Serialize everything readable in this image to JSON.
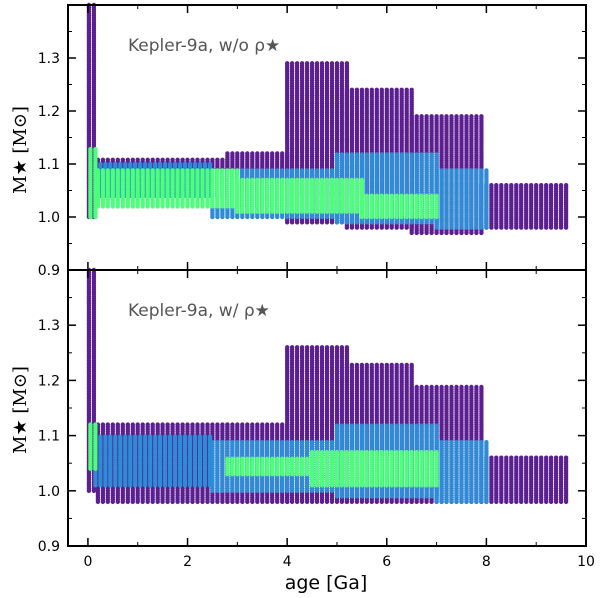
{
  "chart_data": [
    {
      "type": "scatter",
      "annotation": "Kepler-9a, w/o ρ★",
      "ylabel": "M★ [M⊙]",
      "ylim": [
        0.9,
        1.4
      ],
      "xlim": [
        -0.4,
        10
      ],
      "yticks": [
        "0.9",
        "1.0",
        "1.1",
        "1.2",
        "1.3"
      ],
      "colors": {
        "purple": "#5b1f8f",
        "blue": "#2e8bd6",
        "green": "#4dff7a"
      },
      "regions": {
        "purple": [
          {
            "age_min": 0.02,
            "age_max": 0.12,
            "m_min": 1.0,
            "m_max": 1.4
          },
          {
            "age_min": 0.2,
            "age_max": 2.8,
            "m_min": 1.04,
            "m_max": 1.11
          },
          {
            "age_min": 2.8,
            "age_max": 4.0,
            "m_min": 1.02,
            "m_max": 1.12
          },
          {
            "age_min": 4.0,
            "age_max": 5.2,
            "m_min": 0.99,
            "m_max": 1.29
          },
          {
            "age_min": 5.2,
            "age_max": 6.5,
            "m_min": 0.98,
            "m_max": 1.24
          },
          {
            "age_min": 6.5,
            "age_max": 7.9,
            "m_min": 0.97,
            "m_max": 1.19
          },
          {
            "age_min": 7.9,
            "age_max": 9.6,
            "m_min": 0.98,
            "m_max": 1.06
          }
        ],
        "blue": [
          {
            "age_min": 0.15,
            "age_max": 2.5,
            "m_min": 1.04,
            "m_max": 1.1
          },
          {
            "age_min": 2.5,
            "age_max": 5.0,
            "m_min": 1.0,
            "m_max": 1.09
          },
          {
            "age_min": 5.0,
            "age_max": 7.0,
            "m_min": 0.99,
            "m_max": 1.12
          },
          {
            "age_min": 7.0,
            "age_max": 8.0,
            "m_min": 0.98,
            "m_max": 1.09
          }
        ],
        "green": [
          {
            "age_min": 0.05,
            "age_max": 0.2,
            "m_min": 1.0,
            "m_max": 1.13
          },
          {
            "age_min": 0.2,
            "age_max": 3.0,
            "m_min": 1.02,
            "m_max": 1.09
          },
          {
            "age_min": 3.0,
            "age_max": 5.5,
            "m_min": 1.01,
            "m_max": 1.07
          },
          {
            "age_min": 5.5,
            "age_max": 7.0,
            "m_min": 1.0,
            "m_max": 1.04
          }
        ]
      }
    },
    {
      "type": "scatter",
      "annotation": "Kepler-9a, w/ ρ★",
      "ylabel": "M★ [M⊙]",
      "xlabel": "age [Ga]",
      "ylim": [
        0.9,
        1.4
      ],
      "xlim": [
        -0.4,
        10
      ],
      "yticks": [
        "0.9",
        "1.0",
        "1.1",
        "1.2",
        "1.3"
      ],
      "xticks": [
        "0",
        "2",
        "4",
        "6",
        "8",
        "10"
      ],
      "colors": {
        "purple": "#5b1f8f",
        "blue": "#2e8bd6",
        "green": "#4dff7a"
      },
      "regions": {
        "purple": [
          {
            "age_min": 0.02,
            "age_max": 0.12,
            "m_min": 1.0,
            "m_max": 1.4
          },
          {
            "age_min": 0.2,
            "age_max": 2.8,
            "m_min": 0.98,
            "m_max": 1.12
          },
          {
            "age_min": 2.8,
            "age_max": 4.0,
            "m_min": 0.98,
            "m_max": 1.12
          },
          {
            "age_min": 4.0,
            "age_max": 5.2,
            "m_min": 0.98,
            "m_max": 1.26
          },
          {
            "age_min": 5.2,
            "age_max": 6.5,
            "m_min": 0.98,
            "m_max": 1.23
          },
          {
            "age_min": 6.5,
            "age_max": 7.9,
            "m_min": 0.98,
            "m_max": 1.19
          },
          {
            "age_min": 7.9,
            "age_max": 9.6,
            "m_min": 0.98,
            "m_max": 1.06
          }
        ],
        "blue": [
          {
            "age_min": 0.15,
            "age_max": 2.5,
            "m_min": 1.01,
            "m_max": 1.1
          },
          {
            "age_min": 2.5,
            "age_max": 5.0,
            "m_min": 1.0,
            "m_max": 1.09
          },
          {
            "age_min": 5.0,
            "age_max": 7.0,
            "m_min": 0.99,
            "m_max": 1.12
          },
          {
            "age_min": 7.0,
            "age_max": 8.0,
            "m_min": 0.98,
            "m_max": 1.09
          }
        ],
        "green": [
          {
            "age_min": 0.05,
            "age_max": 0.2,
            "m_min": 1.04,
            "m_max": 1.12
          },
          {
            "age_min": 2.8,
            "age_max": 4.5,
            "m_min": 1.03,
            "m_max": 1.06
          },
          {
            "age_min": 4.5,
            "age_max": 7.0,
            "m_min": 1.01,
            "m_max": 1.07
          }
        ]
      }
    }
  ]
}
